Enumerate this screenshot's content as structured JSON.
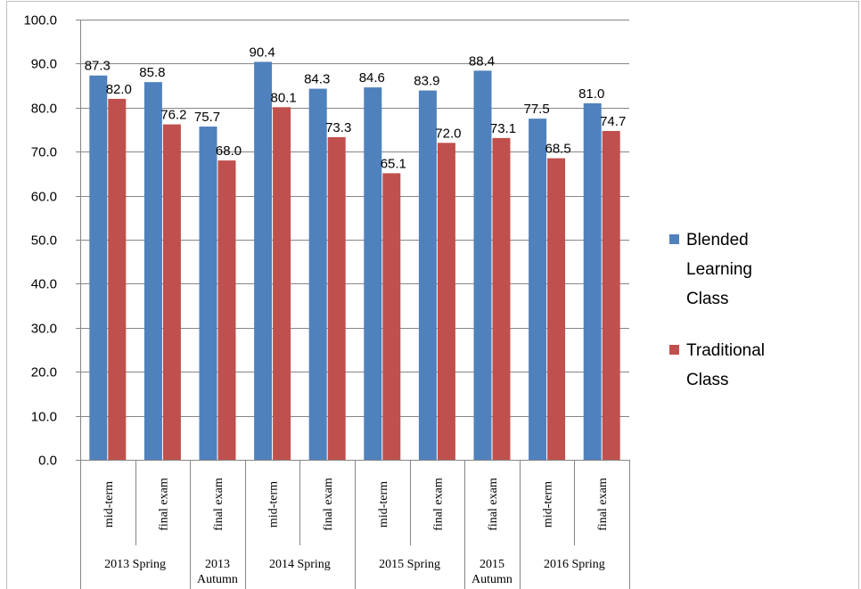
{
  "chart_data": {
    "type": "bar",
    "ylim": [
      0,
      100
    ],
    "yticks": [
      "0.0",
      "10.0",
      "20.0",
      "30.0",
      "40.0",
      "50.0",
      "60.0",
      "70.0",
      "80.0",
      "90.0",
      "100.0"
    ],
    "grid": true,
    "legend_position": "right",
    "categories": [
      "mid-term",
      "final exam",
      "final exam",
      "mid-term",
      "final exam",
      "mid-term",
      "final exam",
      "final exam",
      "mid-term",
      "final exam"
    ],
    "groups": [
      {
        "label": [
          "2013 Spring"
        ],
        "span": 2
      },
      {
        "label": [
          "2013",
          "Autumn"
        ],
        "span": 1
      },
      {
        "label": [
          "2014 Spring"
        ],
        "span": 2
      },
      {
        "label": [
          "2015 Spring"
        ],
        "span": 2
      },
      {
        "label": [
          "2015",
          "Autumn"
        ],
        "span": 1
      },
      {
        "label": [
          "2016 Spring"
        ],
        "span": 2
      }
    ],
    "series": [
      {
        "name": "Blended Learning Class",
        "legend_lines": [
          "Blended",
          "Learning",
          "Class"
        ],
        "color": "#4F81BD",
        "values": [
          87.3,
          85.8,
          75.7,
          90.4,
          84.3,
          84.6,
          83.9,
          88.4,
          77.5,
          81.0
        ],
        "labels": [
          "87.3",
          "85.8",
          "75.7",
          "90.4",
          "84.3",
          "84.6",
          "83.9",
          "88.4",
          "77.5",
          "81.0"
        ]
      },
      {
        "name": "Traditional Class",
        "legend_lines": [
          "Traditional",
          "Class"
        ],
        "color": "#C0504D",
        "values": [
          82.0,
          76.2,
          68.0,
          80.1,
          73.3,
          65.1,
          72.0,
          73.1,
          68.5,
          74.7
        ],
        "labels": [
          "82.0",
          "76.2",
          "68.0",
          "80.1",
          "73.3",
          "65.1",
          "72.0",
          "73.1",
          "68.5",
          "74.7"
        ]
      }
    ]
  }
}
